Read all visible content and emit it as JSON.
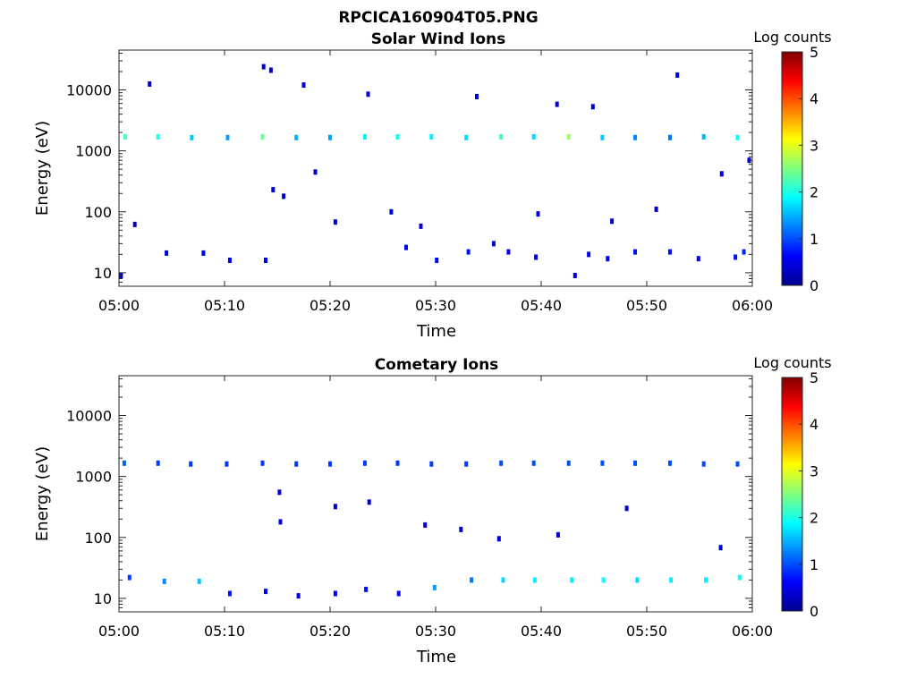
{
  "figure": {
    "filename": "RPCICA160904T05.PNG"
  },
  "colorbar": {
    "label": "Log counts",
    "ticks": [
      "0",
      "1",
      "2",
      "3",
      "4",
      "5"
    ],
    "range": [
      0,
      5
    ],
    "colormap": "jet"
  },
  "chart_data": [
    {
      "type": "heatmap",
      "title": "Solar Wind Ions",
      "xlabel": "Time",
      "ylabel": "Energy (eV)",
      "yscale": "log",
      "xticks": [
        "05:00",
        "05:10",
        "05:20",
        "05:30",
        "05:40",
        "05:50",
        "06:00"
      ],
      "yticks": [
        "10",
        "100",
        "1000",
        "10000"
      ],
      "xlim_min": [
        0,
        60
      ],
      "ylim": [
        6,
        45000
      ],
      "grid": false,
      "colorbar_label": "Log counts",
      "points": [
        {
          "t": 0.6,
          "e": 1700,
          "v": 2.2
        },
        {
          "t": 3.7,
          "e": 1700,
          "v": 2.0
        },
        {
          "t": 6.9,
          "e": 1650,
          "v": 1.6
        },
        {
          "t": 10.3,
          "e": 1650,
          "v": 1.4
        },
        {
          "t": 13.6,
          "e": 1700,
          "v": 2.4
        },
        {
          "t": 16.8,
          "e": 1650,
          "v": 1.5
        },
        {
          "t": 20.0,
          "e": 1650,
          "v": 1.4
        },
        {
          "t": 23.3,
          "e": 1700,
          "v": 1.8
        },
        {
          "t": 26.4,
          "e": 1700,
          "v": 1.9
        },
        {
          "t": 29.6,
          "e": 1700,
          "v": 1.8
        },
        {
          "t": 32.9,
          "e": 1650,
          "v": 1.7
        },
        {
          "t": 36.2,
          "e": 1700,
          "v": 2.2
        },
        {
          "t": 39.3,
          "e": 1700,
          "v": 1.7
        },
        {
          "t": 42.6,
          "e": 1700,
          "v": 2.6
        },
        {
          "t": 45.8,
          "e": 1650,
          "v": 1.6
        },
        {
          "t": 48.9,
          "e": 1650,
          "v": 1.3
        },
        {
          "t": 52.2,
          "e": 1650,
          "v": 1.2
        },
        {
          "t": 55.4,
          "e": 1700,
          "v": 1.5
        },
        {
          "t": 58.6,
          "e": 1650,
          "v": 1.9
        },
        {
          "t": 0.2,
          "e": 9,
          "v": 0.4
        },
        {
          "t": 1.5,
          "e": 62,
          "v": 0.3
        },
        {
          "t": 4.5,
          "e": 21,
          "v": 0.5
        },
        {
          "t": 8.0,
          "e": 21,
          "v": 0.5
        },
        {
          "t": 10.5,
          "e": 16,
          "v": 0.5
        },
        {
          "t": 13.9,
          "e": 16,
          "v": 0.5
        },
        {
          "t": 27.2,
          "e": 26,
          "v": 0.6
        },
        {
          "t": 30.1,
          "e": 16,
          "v": 0.6
        },
        {
          "t": 33.1,
          "e": 22,
          "v": 0.7
        },
        {
          "t": 36.9,
          "e": 22,
          "v": 0.6
        },
        {
          "t": 39.5,
          "e": 18,
          "v": 0.5
        },
        {
          "t": 43.2,
          "e": 9,
          "v": 0.4
        },
        {
          "t": 44.5,
          "e": 20,
          "v": 0.6
        },
        {
          "t": 46.3,
          "e": 17,
          "v": 0.5
        },
        {
          "t": 48.9,
          "e": 22,
          "v": 0.7
        },
        {
          "t": 52.2,
          "e": 22,
          "v": 0.7
        },
        {
          "t": 54.9,
          "e": 17,
          "v": 0.6
        },
        {
          "t": 58.4,
          "e": 18,
          "v": 0.7
        },
        {
          "t": 59.2,
          "e": 22,
          "v": 0.8
        },
        {
          "t": 2.9,
          "e": 12500,
          "v": 0.4
        },
        {
          "t": 13.7,
          "e": 24000,
          "v": 0.4
        },
        {
          "t": 14.4,
          "e": 21000,
          "v": 0.4
        },
        {
          "t": 17.5,
          "e": 12000,
          "v": 0.4
        },
        {
          "t": 23.6,
          "e": 8500,
          "v": 0.4
        },
        {
          "t": 33.9,
          "e": 7800,
          "v": 0.4
        },
        {
          "t": 41.5,
          "e": 5800,
          "v": 0.4
        },
        {
          "t": 44.9,
          "e": 5300,
          "v": 0.4
        },
        {
          "t": 52.9,
          "e": 17500,
          "v": 0.4
        },
        {
          "t": 14.6,
          "e": 230,
          "v": 0.4
        },
        {
          "t": 15.6,
          "e": 180,
          "v": 0.4
        },
        {
          "t": 18.6,
          "e": 450,
          "v": 0.4
        },
        {
          "t": 20.5,
          "e": 68,
          "v": 0.4
        },
        {
          "t": 25.8,
          "e": 100,
          "v": 0.4
        },
        {
          "t": 28.6,
          "e": 58,
          "v": 0.4
        },
        {
          "t": 35.5,
          "e": 30,
          "v": 0.4
        },
        {
          "t": 39.7,
          "e": 92,
          "v": 0.4
        },
        {
          "t": 46.7,
          "e": 70,
          "v": 0.4
        },
        {
          "t": 50.9,
          "e": 110,
          "v": 0.4
        },
        {
          "t": 57.1,
          "e": 420,
          "v": 0.4
        },
        {
          "t": 59.7,
          "e": 700,
          "v": 0.4
        }
      ]
    },
    {
      "type": "heatmap",
      "title": "Cometary Ions",
      "xlabel": "Time",
      "ylabel": "Energy (eV)",
      "yscale": "log",
      "xticks": [
        "05:00",
        "05:10",
        "05:20",
        "05:30",
        "05:40",
        "05:50",
        "06:00"
      ],
      "yticks": [
        "10",
        "100",
        "1000",
        "10000"
      ],
      "xlim_min": [
        0,
        60
      ],
      "ylim": [
        6,
        45000
      ],
      "grid": false,
      "colorbar_label": "Log counts",
      "points": [
        {
          "t": 0.5,
          "e": 1650,
          "v": 1.1
        },
        {
          "t": 3.7,
          "e": 1650,
          "v": 0.9
        },
        {
          "t": 6.8,
          "e": 1600,
          "v": 0.9
        },
        {
          "t": 10.2,
          "e": 1600,
          "v": 0.9
        },
        {
          "t": 13.6,
          "e": 1650,
          "v": 0.9
        },
        {
          "t": 16.8,
          "e": 1600,
          "v": 0.9
        },
        {
          "t": 20.0,
          "e": 1600,
          "v": 0.9
        },
        {
          "t": 23.3,
          "e": 1650,
          "v": 0.9
        },
        {
          "t": 26.4,
          "e": 1650,
          "v": 0.9
        },
        {
          "t": 29.6,
          "e": 1600,
          "v": 0.9
        },
        {
          "t": 32.9,
          "e": 1600,
          "v": 0.9
        },
        {
          "t": 36.2,
          "e": 1650,
          "v": 1.0
        },
        {
          "t": 39.3,
          "e": 1650,
          "v": 1.0
        },
        {
          "t": 42.6,
          "e": 1650,
          "v": 1.0
        },
        {
          "t": 45.8,
          "e": 1650,
          "v": 1.0
        },
        {
          "t": 48.9,
          "e": 1650,
          "v": 1.0
        },
        {
          "t": 52.2,
          "e": 1650,
          "v": 1.0
        },
        {
          "t": 55.4,
          "e": 1600,
          "v": 1.0
        },
        {
          "t": 58.6,
          "e": 1600,
          "v": 1.0
        },
        {
          "t": 1.0,
          "e": 22,
          "v": 0.9
        },
        {
          "t": 4.3,
          "e": 19,
          "v": 1.3
        },
        {
          "t": 7.6,
          "e": 19,
          "v": 1.6
        },
        {
          "t": 10.5,
          "e": 12,
          "v": 0.7
        },
        {
          "t": 13.9,
          "e": 13,
          "v": 0.6
        },
        {
          "t": 17.0,
          "e": 11,
          "v": 0.5
        },
        {
          "t": 20.5,
          "e": 12,
          "v": 0.6
        },
        {
          "t": 23.4,
          "e": 14,
          "v": 0.7
        },
        {
          "t": 26.5,
          "e": 12,
          "v": 0.6
        },
        {
          "t": 29.9,
          "e": 15,
          "v": 1.4
        },
        {
          "t": 33.4,
          "e": 20,
          "v": 1.2
        },
        {
          "t": 36.4,
          "e": 20,
          "v": 1.7
        },
        {
          "t": 39.4,
          "e": 20,
          "v": 1.8
        },
        {
          "t": 42.9,
          "e": 20,
          "v": 1.8
        },
        {
          "t": 45.9,
          "e": 20,
          "v": 1.9
        },
        {
          "t": 49.1,
          "e": 20,
          "v": 1.7
        },
        {
          "t": 52.3,
          "e": 20,
          "v": 1.8
        },
        {
          "t": 55.6,
          "e": 20,
          "v": 1.8
        },
        {
          "t": 58.8,
          "e": 22,
          "v": 1.9
        },
        {
          "t": 15.3,
          "e": 180,
          "v": 0.4
        },
        {
          "t": 15.2,
          "e": 550,
          "v": 0.4
        },
        {
          "t": 20.5,
          "e": 320,
          "v": 0.4
        },
        {
          "t": 23.7,
          "e": 380,
          "v": 0.4
        },
        {
          "t": 29.0,
          "e": 160,
          "v": 0.4
        },
        {
          "t": 32.4,
          "e": 135,
          "v": 0.4
        },
        {
          "t": 36.0,
          "e": 95,
          "v": 0.4
        },
        {
          "t": 41.6,
          "e": 110,
          "v": 0.4
        },
        {
          "t": 48.1,
          "e": 300,
          "v": 0.4
        },
        {
          "t": 57.0,
          "e": 68,
          "v": 0.4
        }
      ]
    }
  ]
}
